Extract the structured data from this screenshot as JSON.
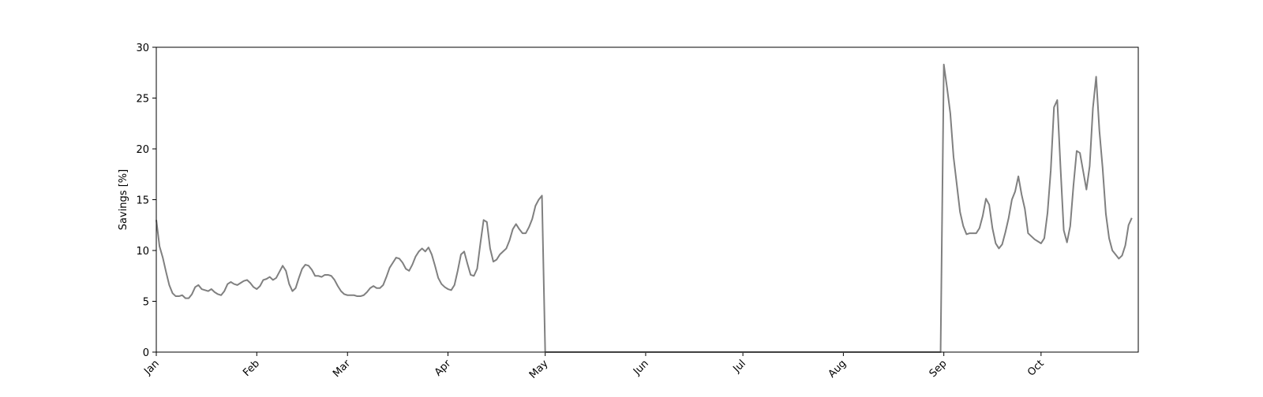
{
  "chart_data": {
    "type": "line",
    "title": "",
    "xlabel": "",
    "ylabel": "Savings [%]",
    "ylim": [
      0,
      30
    ],
    "xlim": [
      "Jan 1",
      "Oct 31"
    ],
    "y_ticks": [
      0,
      5,
      10,
      15,
      20,
      25,
      30
    ],
    "x_ticks": [
      {
        "label": "Jan",
        "day": 0
      },
      {
        "label": "Feb",
        "day": 31
      },
      {
        "label": "Mar",
        "day": 59
      },
      {
        "label": "Apr",
        "day": 90
      },
      {
        "label": "May",
        "day": 120
      },
      {
        "label": "Jun",
        "day": 151
      },
      {
        "label": "Jul",
        "day": 181
      },
      {
        "label": "Aug",
        "day": 212
      },
      {
        "label": "Sep",
        "day": 243
      },
      {
        "label": "Oct",
        "day": 273
      }
    ],
    "grid": false,
    "legend": "none",
    "line_color": "#808080",
    "series": [
      {
        "points": [
          [
            0,
            13.0
          ],
          [
            1,
            10.4
          ],
          [
            2,
            9.3
          ],
          [
            3,
            7.9
          ],
          [
            4,
            6.6
          ],
          [
            5,
            5.8
          ],
          [
            6,
            5.5
          ],
          [
            7,
            5.5
          ],
          [
            8,
            5.6
          ],
          [
            9,
            5.3
          ],
          [
            10,
            5.3
          ],
          [
            11,
            5.7
          ],
          [
            12,
            6.4
          ],
          [
            13,
            6.6
          ],
          [
            14,
            6.2
          ],
          [
            15,
            6.1
          ],
          [
            16,
            6.0
          ],
          [
            17,
            6.2
          ],
          [
            18,
            5.9
          ],
          [
            19,
            5.7
          ],
          [
            20,
            5.6
          ],
          [
            21,
            6.0
          ],
          [
            22,
            6.7
          ],
          [
            23,
            6.9
          ],
          [
            24,
            6.7
          ],
          [
            25,
            6.6
          ],
          [
            26,
            6.8
          ],
          [
            27,
            7.0
          ],
          [
            28,
            7.1
          ],
          [
            29,
            6.8
          ],
          [
            30,
            6.4
          ],
          [
            31,
            6.2
          ],
          [
            32,
            6.5
          ],
          [
            33,
            7.1
          ],
          [
            34,
            7.2
          ],
          [
            35,
            7.4
          ],
          [
            36,
            7.1
          ],
          [
            37,
            7.3
          ],
          [
            38,
            7.9
          ],
          [
            39,
            8.5
          ],
          [
            40,
            8.0
          ],
          [
            41,
            6.7
          ],
          [
            42,
            6.0
          ],
          [
            43,
            6.3
          ],
          [
            44,
            7.3
          ],
          [
            45,
            8.2
          ],
          [
            46,
            8.6
          ],
          [
            47,
            8.5
          ],
          [
            48,
            8.1
          ],
          [
            49,
            7.5
          ],
          [
            50,
            7.5
          ],
          [
            51,
            7.4
          ],
          [
            52,
            7.6
          ],
          [
            53,
            7.6
          ],
          [
            54,
            7.5
          ],
          [
            55,
            7.1
          ],
          [
            56,
            6.5
          ],
          [
            57,
            6.0
          ],
          [
            58,
            5.7
          ],
          [
            59,
            5.6
          ],
          [
            60,
            5.6
          ],
          [
            61,
            5.6
          ],
          [
            62,
            5.5
          ],
          [
            63,
            5.5
          ],
          [
            64,
            5.6
          ],
          [
            65,
            5.9
          ],
          [
            66,
            6.3
          ],
          [
            67,
            6.5
          ],
          [
            68,
            6.3
          ],
          [
            69,
            6.3
          ],
          [
            70,
            6.6
          ],
          [
            71,
            7.4
          ],
          [
            72,
            8.3
          ],
          [
            73,
            8.8
          ],
          [
            74,
            9.3
          ],
          [
            75,
            9.2
          ],
          [
            76,
            8.8
          ],
          [
            77,
            8.2
          ],
          [
            78,
            8.0
          ],
          [
            79,
            8.6
          ],
          [
            80,
            9.4
          ],
          [
            81,
            9.9
          ],
          [
            82,
            10.2
          ],
          [
            83,
            9.9
          ],
          [
            84,
            10.3
          ],
          [
            85,
            9.6
          ],
          [
            86,
            8.5
          ],
          [
            87,
            7.3
          ],
          [
            88,
            6.7
          ],
          [
            89,
            6.4
          ],
          [
            90,
            6.2
          ],
          [
            91,
            6.1
          ],
          [
            92,
            6.6
          ],
          [
            93,
            8.0
          ],
          [
            94,
            9.6
          ],
          [
            95,
            9.9
          ],
          [
            96,
            8.7
          ],
          [
            97,
            7.6
          ],
          [
            98,
            7.5
          ],
          [
            99,
            8.2
          ],
          [
            100,
            10.7
          ],
          [
            101,
            13.0
          ],
          [
            102,
            12.8
          ],
          [
            103,
            10.2
          ],
          [
            104,
            8.9
          ],
          [
            105,
            9.1
          ],
          [
            106,
            9.6
          ],
          [
            107,
            9.9
          ],
          [
            108,
            10.2
          ],
          [
            109,
            11.0
          ],
          [
            110,
            12.1
          ],
          [
            111,
            12.6
          ],
          [
            112,
            12.1
          ],
          [
            113,
            11.7
          ],
          [
            114,
            11.7
          ],
          [
            115,
            12.3
          ],
          [
            116,
            13.1
          ],
          [
            117,
            14.4
          ],
          [
            118,
            15.0
          ],
          [
            119,
            15.4
          ],
          [
            120,
            0.0
          ],
          [
            121,
            0.0
          ],
          [
            150,
            0.0
          ],
          [
            180,
            0.0
          ],
          [
            210,
            0.0
          ],
          [
            240,
            0.0
          ],
          [
            241,
            0.0
          ],
          [
            242,
            0.0
          ],
          [
            243,
            28.3
          ],
          [
            244,
            26.0
          ],
          [
            245,
            23.5
          ],
          [
            246,
            19.2
          ],
          [
            247,
            16.5
          ],
          [
            248,
            13.8
          ],
          [
            249,
            12.4
          ],
          [
            250,
            11.6
          ],
          [
            251,
            11.7
          ],
          [
            252,
            11.7
          ],
          [
            253,
            11.7
          ],
          [
            254,
            12.2
          ],
          [
            255,
            13.4
          ],
          [
            256,
            15.1
          ],
          [
            257,
            14.5
          ],
          [
            258,
            12.2
          ],
          [
            259,
            10.7
          ],
          [
            260,
            10.2
          ],
          [
            261,
            10.6
          ],
          [
            262,
            11.8
          ],
          [
            263,
            13.2
          ],
          [
            264,
            15.0
          ],
          [
            265,
            15.8
          ],
          [
            266,
            17.3
          ],
          [
            267,
            15.5
          ],
          [
            268,
            14.1
          ],
          [
            269,
            11.7
          ],
          [
            270,
            11.4
          ],
          [
            271,
            11.1
          ],
          [
            272,
            10.9
          ],
          [
            273,
            10.7
          ],
          [
            274,
            11.2
          ],
          [
            275,
            13.7
          ],
          [
            276,
            17.9
          ],
          [
            277,
            24.1
          ],
          [
            278,
            24.8
          ],
          [
            279,
            18.2
          ],
          [
            280,
            12.0
          ],
          [
            281,
            10.8
          ],
          [
            282,
            12.4
          ],
          [
            283,
            16.4
          ],
          [
            284,
            19.8
          ],
          [
            285,
            19.6
          ],
          [
            286,
            17.8
          ],
          [
            287,
            16.0
          ],
          [
            288,
            18.3
          ],
          [
            289,
            24.0
          ],
          [
            290,
            27.1
          ],
          [
            291,
            21.8
          ],
          [
            292,
            18.1
          ],
          [
            293,
            13.6
          ],
          [
            294,
            11.2
          ],
          [
            295,
            10.0
          ],
          [
            296,
            9.6
          ],
          [
            297,
            9.2
          ],
          [
            298,
            9.5
          ],
          [
            299,
            10.5
          ],
          [
            300,
            12.5
          ],
          [
            301,
            13.2
          ]
        ]
      }
    ]
  }
}
